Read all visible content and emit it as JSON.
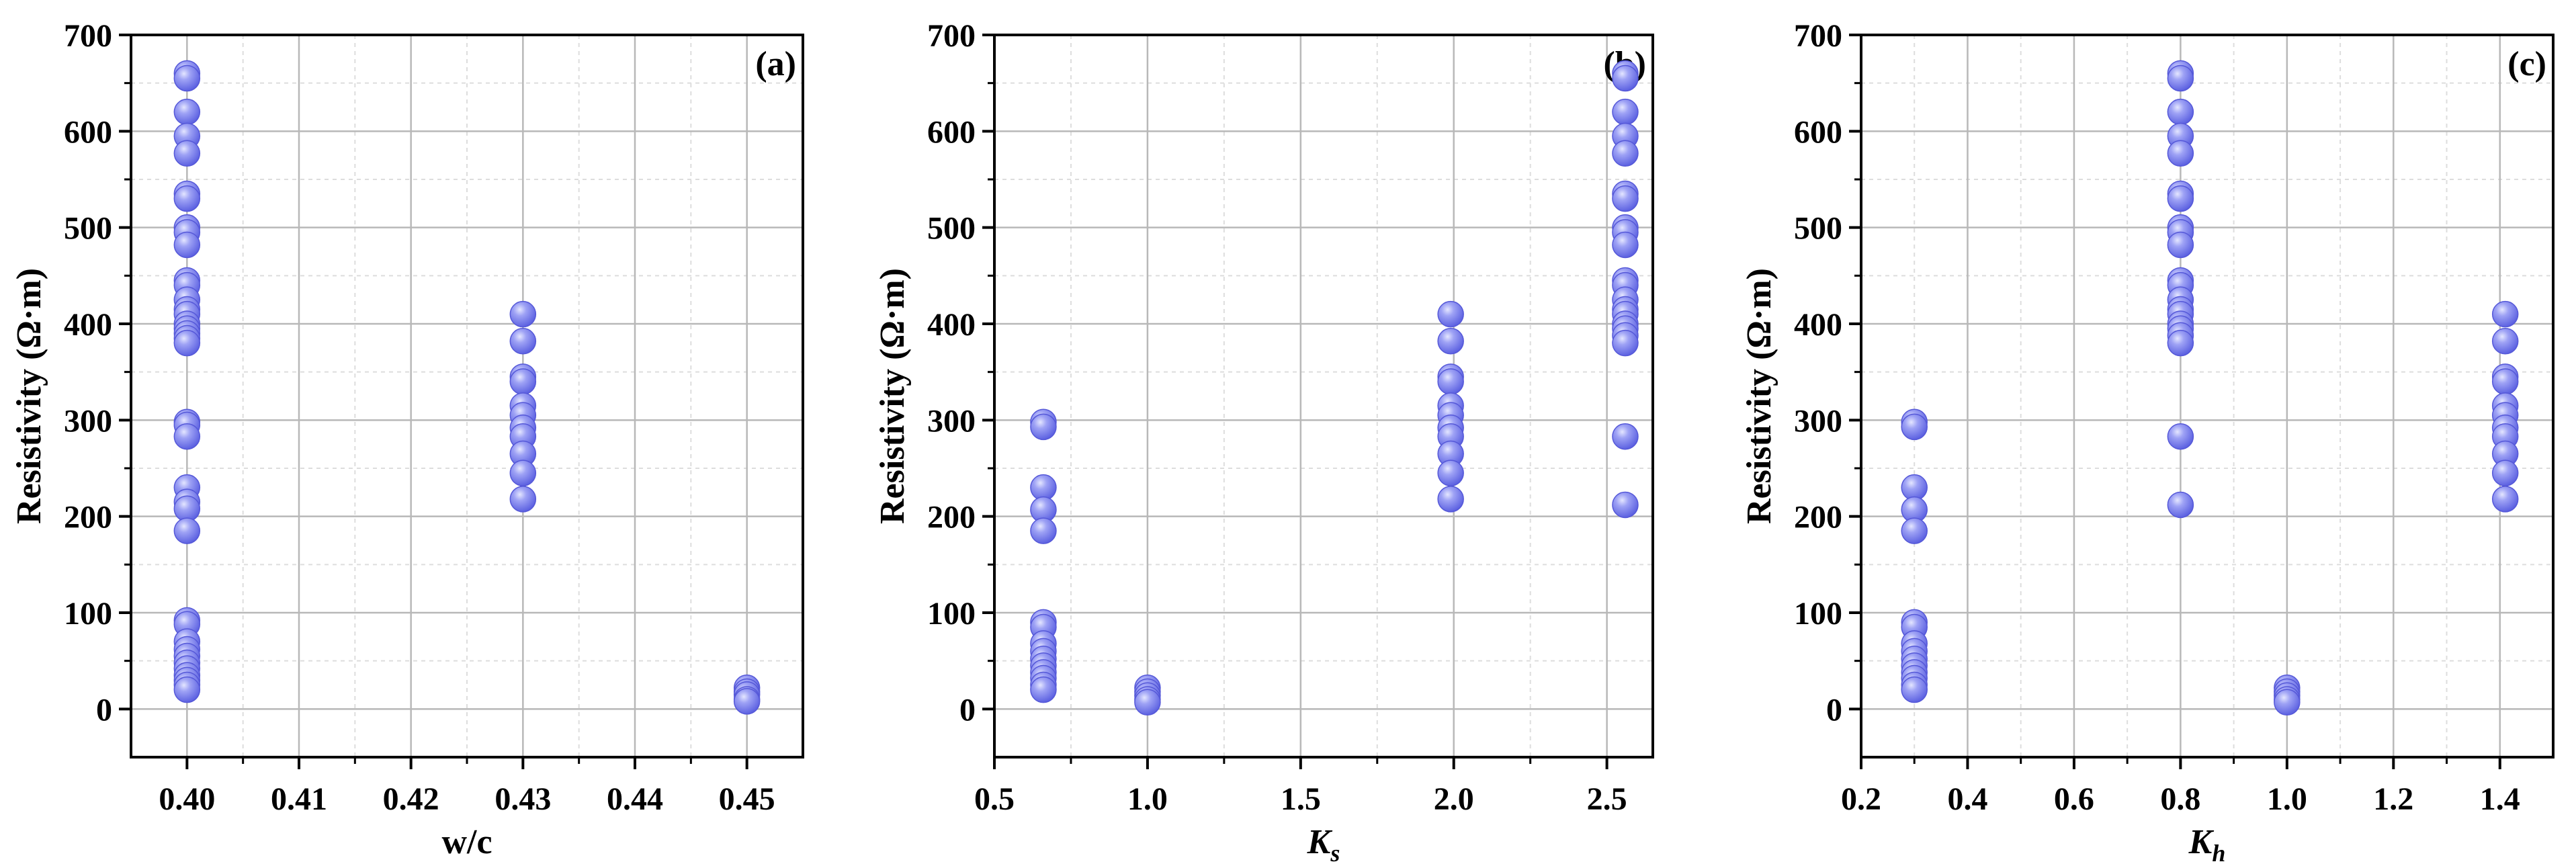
{
  "chart_data": [
    {
      "type": "scatter",
      "panel_label": "(a)",
      "xlabel": "w/c",
      "ylabel": "Resistivity (Ω·m)",
      "xlim": [
        0.395,
        0.455
      ],
      "ylim": [
        -50,
        700
      ],
      "xticks": [
        0.4,
        0.41,
        0.42,
        0.43,
        0.44,
        0.45
      ],
      "xtick_labels": [
        "0.40",
        "0.41",
        "0.42",
        "0.43",
        "0.44",
        "0.45"
      ],
      "yticks": [
        0,
        100,
        200,
        300,
        400,
        500,
        600,
        700
      ],
      "ytick_labels": [
        "0",
        "100",
        "200",
        "300",
        "400",
        "500",
        "600",
        "700"
      ],
      "grid": true,
      "marker_color": "#7b7ff0",
      "points": [
        [
          0.4,
          660
        ],
        [
          0.4,
          655
        ],
        [
          0.4,
          620
        ],
        [
          0.4,
          595
        ],
        [
          0.4,
          577
        ],
        [
          0.4,
          535
        ],
        [
          0.4,
          530
        ],
        [
          0.4,
          500
        ],
        [
          0.4,
          495
        ],
        [
          0.4,
          482
        ],
        [
          0.4,
          445
        ],
        [
          0.4,
          440
        ],
        [
          0.4,
          425
        ],
        [
          0.4,
          415
        ],
        [
          0.4,
          410
        ],
        [
          0.4,
          400
        ],
        [
          0.4,
          395
        ],
        [
          0.4,
          390
        ],
        [
          0.4,
          385
        ],
        [
          0.4,
          380
        ],
        [
          0.4,
          298
        ],
        [
          0.4,
          295
        ],
        [
          0.4,
          283
        ],
        [
          0.4,
          230
        ],
        [
          0.4,
          215
        ],
        [
          0.4,
          208
        ],
        [
          0.4,
          185
        ],
        [
          0.4,
          92
        ],
        [
          0.4,
          88
        ],
        [
          0.4,
          70
        ],
        [
          0.4,
          62
        ],
        [
          0.4,
          55
        ],
        [
          0.4,
          48
        ],
        [
          0.4,
          42
        ],
        [
          0.4,
          35
        ],
        [
          0.4,
          30
        ],
        [
          0.4,
          25
        ],
        [
          0.4,
          20
        ],
        [
          0.43,
          410
        ],
        [
          0.43,
          382
        ],
        [
          0.43,
          345
        ],
        [
          0.43,
          340
        ],
        [
          0.43,
          315
        ],
        [
          0.43,
          305
        ],
        [
          0.43,
          292
        ],
        [
          0.43,
          283
        ],
        [
          0.43,
          265
        ],
        [
          0.43,
          245
        ],
        [
          0.43,
          218
        ],
        [
          0.45,
          22
        ],
        [
          0.45,
          18
        ],
        [
          0.45,
          15
        ],
        [
          0.45,
          10
        ],
        [
          0.45,
          8
        ]
      ]
    },
    {
      "type": "scatter",
      "panel_label": "(b)",
      "xlabel_main": "K",
      "xlabel_sub": "s",
      "ylabel": "Resistivity (Ω·m)",
      "xlim": [
        0.5,
        2.65
      ],
      "ylim": [
        -50,
        700
      ],
      "xticks": [
        0.5,
        1.0,
        1.5,
        2.0,
        2.5
      ],
      "xtick_labels": [
        "0.5",
        "1.0",
        "1.5",
        "2.0",
        "2.5"
      ],
      "yticks": [
        0,
        100,
        200,
        300,
        400,
        500,
        600,
        700
      ],
      "ytick_labels": [
        "0",
        "100",
        "200",
        "300",
        "400",
        "500",
        "600",
        "700"
      ],
      "grid": true,
      "marker_color": "#7b7ff0",
      "points": [
        [
          0.66,
          298
        ],
        [
          0.66,
          293
        ],
        [
          0.66,
          230
        ],
        [
          0.66,
          207
        ],
        [
          0.66,
          185
        ],
        [
          0.66,
          90
        ],
        [
          0.66,
          85
        ],
        [
          0.66,
          68
        ],
        [
          0.66,
          60
        ],
        [
          0.66,
          52
        ],
        [
          0.66,
          45
        ],
        [
          0.66,
          38
        ],
        [
          0.66,
          32
        ],
        [
          0.66,
          25
        ],
        [
          0.66,
          20
        ],
        [
          1.0,
          22
        ],
        [
          1.0,
          18
        ],
        [
          1.0,
          14
        ],
        [
          1.0,
          10
        ],
        [
          1.0,
          7
        ],
        [
          1.99,
          410
        ],
        [
          1.99,
          382
        ],
        [
          1.99,
          345
        ],
        [
          1.99,
          340
        ],
        [
          1.99,
          315
        ],
        [
          1.99,
          305
        ],
        [
          1.99,
          292
        ],
        [
          1.99,
          283
        ],
        [
          1.99,
          265
        ],
        [
          1.99,
          245
        ],
        [
          1.99,
          218
        ],
        [
          2.56,
          660
        ],
        [
          2.56,
          655
        ],
        [
          2.56,
          620
        ],
        [
          2.56,
          595
        ],
        [
          2.56,
          577
        ],
        [
          2.56,
          535
        ],
        [
          2.56,
          530
        ],
        [
          2.56,
          500
        ],
        [
          2.56,
          495
        ],
        [
          2.56,
          482
        ],
        [
          2.56,
          445
        ],
        [
          2.56,
          440
        ],
        [
          2.56,
          425
        ],
        [
          2.56,
          415
        ],
        [
          2.56,
          410
        ],
        [
          2.56,
          400
        ],
        [
          2.56,
          395
        ],
        [
          2.56,
          388
        ],
        [
          2.56,
          380
        ],
        [
          2.56,
          283
        ],
        [
          2.56,
          212
        ]
      ]
    },
    {
      "type": "scatter",
      "panel_label": "(c)",
      "xlabel_main": "K",
      "xlabel_sub": "h",
      "ylabel": "Resistivity (Ω·m)",
      "xlim": [
        0.2,
        1.5
      ],
      "ylim": [
        -50,
        700
      ],
      "xticks": [
        0.2,
        0.4,
        0.6,
        0.8,
        1.0,
        1.2,
        1.4
      ],
      "xtick_labels": [
        "0.2",
        "0.4",
        "0.6",
        "0.8",
        "1.0",
        "1.2",
        "1.4"
      ],
      "yticks": [
        0,
        100,
        200,
        300,
        400,
        500,
        600,
        700
      ],
      "ytick_labels": [
        "0",
        "100",
        "200",
        "300",
        "400",
        "500",
        "600",
        "700"
      ],
      "grid": true,
      "marker_color": "#7b7ff0",
      "points": [
        [
          0.3,
          298
        ],
        [
          0.3,
          293
        ],
        [
          0.3,
          230
        ],
        [
          0.3,
          207
        ],
        [
          0.3,
          185
        ],
        [
          0.3,
          90
        ],
        [
          0.3,
          85
        ],
        [
          0.3,
          68
        ],
        [
          0.3,
          60
        ],
        [
          0.3,
          52
        ],
        [
          0.3,
          45
        ],
        [
          0.3,
          38
        ],
        [
          0.3,
          32
        ],
        [
          0.3,
          25
        ],
        [
          0.3,
          20
        ],
        [
          0.8,
          660
        ],
        [
          0.8,
          655
        ],
        [
          0.8,
          620
        ],
        [
          0.8,
          595
        ],
        [
          0.8,
          577
        ],
        [
          0.8,
          535
        ],
        [
          0.8,
          530
        ],
        [
          0.8,
          500
        ],
        [
          0.8,
          495
        ],
        [
          0.8,
          482
        ],
        [
          0.8,
          445
        ],
        [
          0.8,
          440
        ],
        [
          0.8,
          425
        ],
        [
          0.8,
          415
        ],
        [
          0.8,
          410
        ],
        [
          0.8,
          400
        ],
        [
          0.8,
          395
        ],
        [
          0.8,
          388
        ],
        [
          0.8,
          380
        ],
        [
          0.8,
          283
        ],
        [
          0.8,
          212
        ],
        [
          1.0,
          22
        ],
        [
          1.0,
          18
        ],
        [
          1.0,
          14
        ],
        [
          1.0,
          10
        ],
        [
          1.0,
          7
        ],
        [
          1.41,
          410
        ],
        [
          1.41,
          382
        ],
        [
          1.41,
          345
        ],
        [
          1.41,
          340
        ],
        [
          1.41,
          315
        ],
        [
          1.41,
          305
        ],
        [
          1.41,
          292
        ],
        [
          1.41,
          283
        ],
        [
          1.41,
          265
        ],
        [
          1.41,
          245
        ],
        [
          1.41,
          218
        ]
      ]
    }
  ]
}
